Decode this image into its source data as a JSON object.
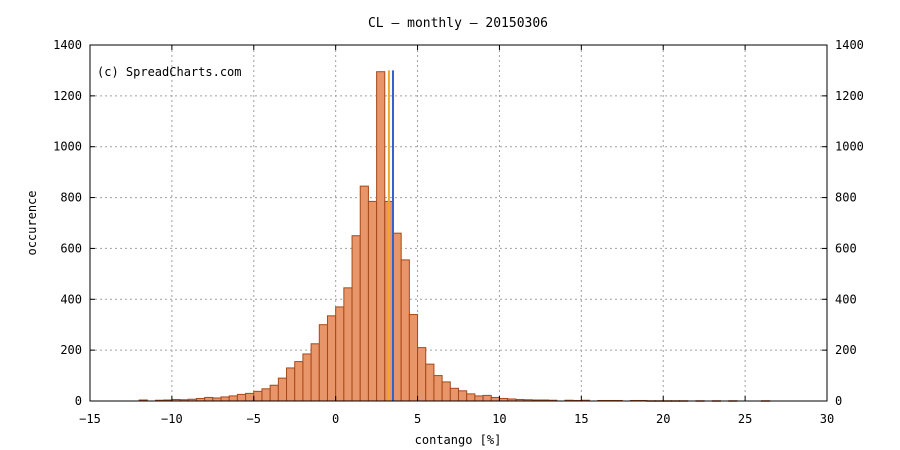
{
  "chart_data": {
    "type": "bar",
    "title": "CL  –  monthly  –  20150306",
    "watermark": "(c) SpreadCharts.com",
    "xlabel": "contango [%]",
    "ylabel": "occurence",
    "xlim": [
      -15,
      30
    ],
    "ylim": [
      0,
      1400
    ],
    "grid": true,
    "xticks": [
      -15,
      -10,
      -5,
      0,
      5,
      10,
      15,
      20,
      25,
      30
    ],
    "yticks": [
      0,
      200,
      400,
      600,
      800,
      1000,
      1200,
      1400
    ],
    "bin_width": 0.5,
    "bins": [
      {
        "x": -12.0,
        "y": 4
      },
      {
        "x": -11.0,
        "y": 3
      },
      {
        "x": -10.5,
        "y": 4
      },
      {
        "x": -10.0,
        "y": 6
      },
      {
        "x": -9.5,
        "y": 5
      },
      {
        "x": -9.0,
        "y": 7
      },
      {
        "x": -8.5,
        "y": 10
      },
      {
        "x": -8.0,
        "y": 14
      },
      {
        "x": -7.5,
        "y": 12
      },
      {
        "x": -7.0,
        "y": 16
      },
      {
        "x": -6.5,
        "y": 20
      },
      {
        "x": -6.0,
        "y": 26
      },
      {
        "x": -5.5,
        "y": 30
      },
      {
        "x": -5.0,
        "y": 38
      },
      {
        "x": -4.5,
        "y": 48
      },
      {
        "x": -4.0,
        "y": 62
      },
      {
        "x": -3.5,
        "y": 90
      },
      {
        "x": -3.0,
        "y": 130
      },
      {
        "x": -2.5,
        "y": 155
      },
      {
        "x": -2.0,
        "y": 185
      },
      {
        "x": -1.5,
        "y": 225
      },
      {
        "x": -1.0,
        "y": 300
      },
      {
        "x": -0.5,
        "y": 335
      },
      {
        "x": 0.0,
        "y": 370
      },
      {
        "x": 0.5,
        "y": 445
      },
      {
        "x": 1.0,
        "y": 650
      },
      {
        "x": 1.5,
        "y": 845
      },
      {
        "x": 2.0,
        "y": 785
      },
      {
        "x": 2.5,
        "y": 1295
      },
      {
        "x": 3.0,
        "y": 785
      },
      {
        "x": 3.5,
        "y": 660
      },
      {
        "x": 4.0,
        "y": 555
      },
      {
        "x": 4.5,
        "y": 340
      },
      {
        "x": 5.0,
        "y": 210
      },
      {
        "x": 5.5,
        "y": 145
      },
      {
        "x": 6.0,
        "y": 100
      },
      {
        "x": 6.5,
        "y": 75
      },
      {
        "x": 7.0,
        "y": 50
      },
      {
        "x": 7.5,
        "y": 40
      },
      {
        "x": 8.0,
        "y": 28
      },
      {
        "x": 8.5,
        "y": 20
      },
      {
        "x": 9.0,
        "y": 22
      },
      {
        "x": 9.5,
        "y": 14
      },
      {
        "x": 10.0,
        "y": 10
      },
      {
        "x": 10.5,
        "y": 8
      },
      {
        "x": 11.0,
        "y": 6
      },
      {
        "x": 11.5,
        "y": 5
      },
      {
        "x": 12.0,
        "y": 4
      },
      {
        "x": 12.5,
        "y": 4
      },
      {
        "x": 13.0,
        "y": 3
      },
      {
        "x": 14.0,
        "y": 3
      },
      {
        "x": 14.5,
        "y": 2
      },
      {
        "x": 15.0,
        "y": 3
      },
      {
        "x": 16.0,
        "y": 2
      },
      {
        "x": 16.5,
        "y": 2
      },
      {
        "x": 17.0,
        "y": 2
      },
      {
        "x": 18.0,
        "y": 2
      },
      {
        "x": 18.5,
        "y": 2
      },
      {
        "x": 19.0,
        "y": 1
      },
      {
        "x": 19.5,
        "y": 1
      },
      {
        "x": 20.0,
        "y": 1
      },
      {
        "x": 20.5,
        "y": 1
      },
      {
        "x": 21.0,
        "y": 1
      },
      {
        "x": 22.0,
        "y": 1
      },
      {
        "x": 23.0,
        "y": 1
      },
      {
        "x": 24.0,
        "y": 1
      },
      {
        "x": 26.0,
        "y": 1
      }
    ],
    "markers": [
      {
        "x": 3.25,
        "y": 1300,
        "color": "#f5a623"
      },
      {
        "x": 3.5,
        "y": 1300,
        "color": "#3264c8"
      }
    ],
    "bar_color": "#e8956a",
    "bar_edge_color": "#a84818"
  }
}
